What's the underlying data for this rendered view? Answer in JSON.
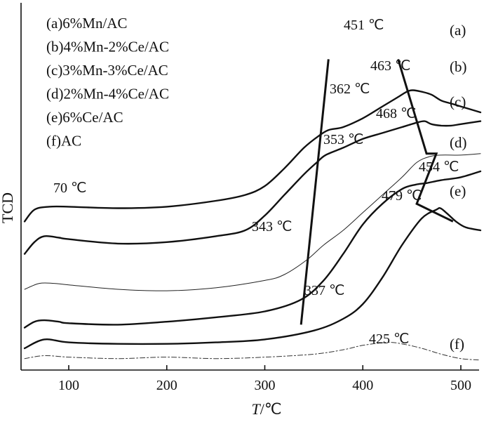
{
  "chart_data": {
    "type": "line",
    "xlabel_italic": "T",
    "xlabel_rest": "/℃",
    "ylabel": "TCD",
    "xlim": [
      50,
      520
    ],
    "xticks": [
      100,
      200,
      300,
      400,
      500
    ],
    "y_ticks_shown": false,
    "legend_placement": "top-left",
    "legend": [
      "(a)6%Mn/AC",
      "(b)4%Mn-2%Ce/AC",
      "(c)3%Mn-3%Ce/AC",
      "(d)2%Mn-4%Ce/AC",
      "(e)6%Ce/AC",
      "(f)AC"
    ],
    "series": [
      {
        "tag": "(a)",
        "style": "thick",
        "x": [
          55,
          65,
          80,
          100,
          150,
          200,
          250,
          280,
          300,
          320,
          340,
          355,
          365,
          380,
          400,
          420,
          435,
          445,
          451,
          460,
          470,
          480,
          490,
          500,
          520
        ],
        "y": [
          0.43,
          0.47,
          0.48,
          0.48,
          0.475,
          0.48,
          0.5,
          0.52,
          0.55,
          0.61,
          0.68,
          0.72,
          0.74,
          0.75,
          0.78,
          0.82,
          0.85,
          0.87,
          0.875,
          0.87,
          0.86,
          0.84,
          0.83,
          0.82,
          0.8
        ]
      },
      {
        "tag": "(b)",
        "style": "thick",
        "x": [
          55,
          65,
          75,
          90,
          100,
          150,
          200,
          250,
          280,
          300,
          320,
          340,
          353,
          362,
          380,
          400,
          420,
          440,
          455,
          463,
          470,
          480,
          490,
          500,
          520
        ],
        "y": [
          0.32,
          0.36,
          0.38,
          0.375,
          0.37,
          0.355,
          0.36,
          0.38,
          0.4,
          0.45,
          0.52,
          0.59,
          0.63,
          0.655,
          0.68,
          0.71,
          0.73,
          0.75,
          0.765,
          0.77,
          0.76,
          0.755,
          0.755,
          0.76,
          0.77
        ]
      },
      {
        "tag": "(c)",
        "style": "thin",
        "x": [
          55,
          70,
          85,
          100,
          150,
          200,
          250,
          300,
          320,
          343,
          360,
          380,
          400,
          420,
          440,
          455,
          468,
          480,
          500,
          520
        ],
        "y": [
          0.2,
          0.22,
          0.22,
          0.215,
          0.2,
          0.195,
          0.205,
          0.23,
          0.25,
          0.3,
          0.35,
          0.4,
          0.46,
          0.52,
          0.58,
          0.63,
          0.65,
          0.655,
          0.655,
          0.66
        ]
      },
      {
        "tag": "(d)",
        "style": "thick",
        "x": [
          55,
          65,
          75,
          90,
          100,
          150,
          200,
          250,
          300,
          337,
          360,
          380,
          400,
          420,
          440,
          454,
          465,
          480,
          500,
          520
        ],
        "y": [
          0.07,
          0.09,
          0.095,
          0.09,
          0.085,
          0.08,
          0.09,
          0.105,
          0.125,
          0.165,
          0.23,
          0.32,
          0.42,
          0.49,
          0.54,
          0.555,
          0.56,
          0.57,
          0.58,
          0.6
        ]
      },
      {
        "tag": "(e)",
        "style": "thick",
        "x": [
          55,
          75,
          100,
          150,
          200,
          250,
          300,
          350,
          380,
          400,
          420,
          440,
          460,
          475,
          479,
          485,
          495,
          505,
          520
        ],
        "y": [
          0.0,
          0.03,
          0.02,
          0.015,
          0.015,
          0.02,
          0.03,
          0.06,
          0.1,
          0.15,
          0.24,
          0.35,
          0.44,
          0.47,
          0.475,
          0.46,
          0.43,
          0.41,
          0.4
        ]
      },
      {
        "tag": "(f)",
        "style": "dashdot",
        "x": [
          55,
          75,
          100,
          150,
          200,
          250,
          300,
          350,
          380,
          400,
          425,
          440,
          460,
          480,
          500,
          520
        ],
        "y": [
          -0.035,
          -0.025,
          -0.03,
          -0.035,
          -0.03,
          -0.035,
          -0.03,
          -0.02,
          -0.005,
          0.01,
          0.02,
          0.015,
          0.0,
          -0.02,
          -0.035,
          -0.04
        ]
      }
    ],
    "peak_annotations": [
      "451 ℃",
      "463 ℃",
      "468 ℃",
      "454 ℃",
      "479 ℃",
      "70 ℃",
      "362 ℃",
      "353 ℃",
      "343 ℃",
      "337 ℃",
      "425 ℃"
    ],
    "guide_lines": [
      {
        "name": "low-temp-guide",
        "x": [
          337,
          365
        ],
        "y": [
          0.08,
          0.98
        ]
      },
      {
        "name": "high-temp-guide",
        "x": [
          436,
          465,
          475,
          455,
          492
        ],
        "y": [
          0.98,
          0.66,
          0.66,
          0.49,
          0.43
        ]
      }
    ]
  }
}
